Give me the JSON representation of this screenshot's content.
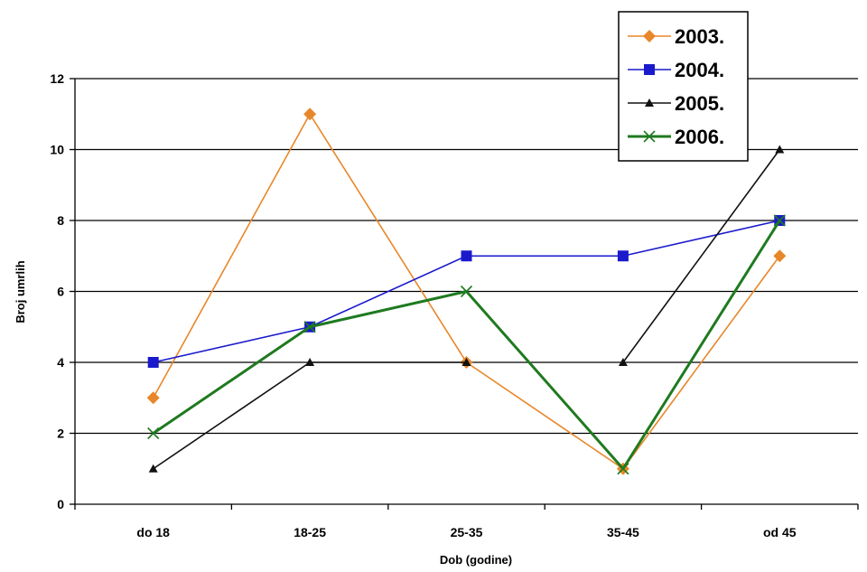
{
  "chart_data": {
    "type": "line",
    "categories": [
      "do 18",
      "18-25",
      "25-35",
      "35-45",
      "od 45"
    ],
    "xlabel": "Dob (godine)",
    "ylabel": "Broj umrlih",
    "ylim": [
      0,
      12
    ],
    "yticks": [
      0,
      2,
      4,
      6,
      8,
      10,
      12
    ],
    "grid": true,
    "legend_position": "top-right",
    "series": [
      {
        "name": "2003.",
        "values": [
          3,
          11,
          4,
          1,
          7
        ],
        "color": "#e8872a",
        "marker": "diamond"
      },
      {
        "name": "2004.",
        "values": [
          4,
          5,
          7,
          7,
          8
        ],
        "color": "#1a1acc",
        "marker": "square"
      },
      {
        "name": "2005.",
        "values": [
          1,
          4,
          4,
          4,
          10
        ],
        "color": "#111111",
        "marker": "triangle",
        "segments": [
          [
            0,
            2
          ],
          [
            3,
            4
          ]
        ]
      },
      {
        "name": "2006.",
        "values": [
          2,
          5,
          6,
          1,
          8
        ],
        "color": "#1f7a1f",
        "marker": "x"
      }
    ]
  }
}
